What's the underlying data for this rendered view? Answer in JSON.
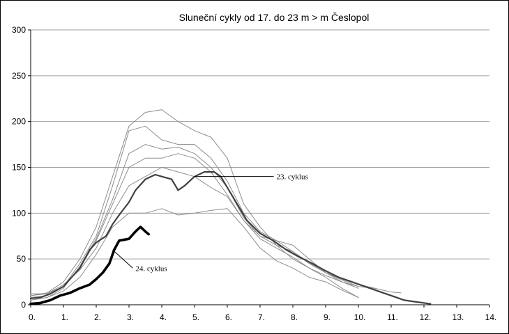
{
  "chart_data": {
    "type": "line",
    "title": "Sluneční cykly od 17. do 23 m > m  Česlopol",
    "xlabel": "",
    "ylabel": "",
    "xlim": [
      0,
      14
    ],
    "ylim": [
      0,
      300
    ],
    "x_ticks": [
      "0.",
      "1.",
      "2.",
      "3.",
      "4.",
      "5.",
      "6.",
      "7.",
      "8.",
      "9.",
      "10.",
      "11.",
      "12.",
      "13.",
      "14."
    ],
    "y_ticks": [
      "0",
      "50",
      "100",
      "150",
      "200",
      "250",
      "300"
    ],
    "grid": "horizontal",
    "annotations": [
      {
        "text": "23. cyklus",
        "points_to": [
          5.0,
          140
        ],
        "label_at": [
          7.5,
          137
        ]
      },
      {
        "text": "24. cyklus",
        "points_to": [
          2.5,
          60
        ],
        "label_at": [
          3.2,
          37
        ]
      }
    ],
    "series": [
      {
        "style": "thin",
        "points": [
          [
            0,
            10
          ],
          [
            0.5,
            13
          ],
          [
            1,
            25
          ],
          [
            1.5,
            50
          ],
          [
            2,
            85
          ],
          [
            2.5,
            140
          ],
          [
            3,
            195
          ],
          [
            3.5,
            210
          ],
          [
            4,
            213
          ],
          [
            4.5,
            200
          ],
          [
            5,
            190
          ],
          [
            5.5,
            183
          ],
          [
            6,
            160
          ],
          [
            6.5,
            110
          ],
          [
            7,
            85
          ],
          [
            7.5,
            65
          ],
          [
            8,
            50
          ],
          [
            8.5,
            40
          ],
          [
            9,
            30
          ],
          [
            9.5,
            18
          ],
          [
            10,
            8
          ]
        ]
      },
      {
        "style": "thin",
        "points": [
          [
            0,
            12
          ],
          [
            0.5,
            12
          ],
          [
            1,
            20
          ],
          [
            1.5,
            45
          ],
          [
            2,
            75
          ],
          [
            2.5,
            130
          ],
          [
            3,
            190
          ],
          [
            3.5,
            195
          ],
          [
            4,
            180
          ],
          [
            4.5,
            175
          ],
          [
            5,
            175
          ],
          [
            5.5,
            160
          ],
          [
            6,
            135
          ],
          [
            6.5,
            100
          ],
          [
            7,
            80
          ],
          [
            7.5,
            70
          ],
          [
            8,
            65
          ],
          [
            8.5,
            50
          ],
          [
            9,
            35
          ],
          [
            9.5,
            25
          ],
          [
            10,
            18
          ]
        ]
      },
      {
        "style": "thin",
        "points": [
          [
            0,
            5
          ],
          [
            0.5,
            8
          ],
          [
            1,
            18
          ],
          [
            1.5,
            42
          ],
          [
            2,
            72
          ],
          [
            2.5,
            115
          ],
          [
            3,
            165
          ],
          [
            3.5,
            175
          ],
          [
            4,
            170
          ],
          [
            4.5,
            172
          ],
          [
            5,
            165
          ],
          [
            5.5,
            150
          ],
          [
            6,
            128
          ],
          [
            6.5,
            95
          ],
          [
            7,
            75
          ],
          [
            7.5,
            65
          ],
          [
            8,
            58
          ],
          [
            8.5,
            45
          ],
          [
            9,
            35
          ],
          [
            9.5,
            28
          ],
          [
            10,
            22
          ],
          [
            10.5,
            18
          ],
          [
            11,
            14
          ],
          [
            11.3,
            13
          ]
        ]
      },
      {
        "style": "thin",
        "points": [
          [
            0,
            8
          ],
          [
            0.5,
            10
          ],
          [
            1,
            20
          ],
          [
            1.5,
            40
          ],
          [
            2,
            70
          ],
          [
            2.5,
            110
          ],
          [
            3,
            150
          ],
          [
            3.5,
            160
          ],
          [
            4,
            160
          ],
          [
            4.5,
            165
          ],
          [
            5,
            160
          ],
          [
            5.5,
            145
          ],
          [
            6,
            120
          ],
          [
            6.5,
            92
          ],
          [
            7,
            72
          ],
          [
            7.5,
            62
          ],
          [
            8,
            52
          ],
          [
            8.5,
            40
          ],
          [
            9,
            32
          ],
          [
            9.5,
            25
          ],
          [
            10,
            20
          ]
        ]
      },
      {
        "style": "thin",
        "points": [
          [
            0,
            10
          ],
          [
            0.5,
            12
          ],
          [
            1,
            22
          ],
          [
            1.5,
            38
          ],
          [
            2,
            62
          ],
          [
            2.5,
            100
          ],
          [
            3,
            130
          ],
          [
            3.5,
            140
          ],
          [
            4,
            150
          ],
          [
            4.5,
            145
          ],
          [
            5,
            140
          ],
          [
            5.5,
            128
          ],
          [
            6,
            118
          ],
          [
            6.5,
            92
          ],
          [
            7,
            75
          ],
          [
            7.5,
            70
          ],
          [
            8,
            58
          ],
          [
            8.5,
            46
          ],
          [
            9,
            35
          ],
          [
            9.5,
            27
          ],
          [
            10,
            20
          ],
          [
            10.5,
            18
          ]
        ]
      },
      {
        "style": "thin",
        "points": [
          [
            0,
            5
          ],
          [
            0.5,
            8
          ],
          [
            1,
            15
          ],
          [
            1.5,
            30
          ],
          [
            2,
            55
          ],
          [
            2.5,
            85
          ],
          [
            3,
            100
          ],
          [
            3.5,
            100
          ],
          [
            4,
            105
          ],
          [
            4.5,
            98
          ],
          [
            5,
            100
          ],
          [
            5.5,
            103
          ],
          [
            6,
            105
          ],
          [
            6.5,
            85
          ],
          [
            7,
            62
          ],
          [
            7.5,
            48
          ],
          [
            8,
            40
          ],
          [
            8.5,
            30
          ],
          [
            9,
            25
          ],
          [
            9.5,
            16
          ],
          [
            10,
            8
          ]
        ]
      },
      {
        "style": "medium",
        "points": [
          [
            0,
            7
          ],
          [
            0.3,
            8
          ],
          [
            0.6,
            12
          ],
          [
            1,
            20
          ],
          [
            1.5,
            40
          ],
          [
            1.8,
            60
          ],
          [
            2,
            68
          ],
          [
            2.3,
            75
          ],
          [
            2.5,
            88
          ],
          [
            2.7,
            98
          ],
          [
            3,
            112
          ],
          [
            3.2,
            125
          ],
          [
            3.5,
            137
          ],
          [
            3.8,
            142
          ],
          [
            4,
            140
          ],
          [
            4.3,
            137
          ],
          [
            4.5,
            125
          ],
          [
            4.7,
            130
          ],
          [
            5,
            140
          ],
          [
            5.3,
            145
          ],
          [
            5.6,
            145
          ],
          [
            5.8,
            140
          ],
          [
            6,
            128
          ],
          [
            6.3,
            110
          ],
          [
            6.6,
            92
          ],
          [
            7,
            78
          ],
          [
            7.4,
            70
          ],
          [
            7.8,
            60
          ],
          [
            8.2,
            52
          ],
          [
            8.6,
            45
          ],
          [
            9,
            37
          ],
          [
            9.4,
            30
          ],
          [
            9.8,
            25
          ],
          [
            10.2,
            20
          ],
          [
            10.6,
            15
          ],
          [
            11,
            10
          ],
          [
            11.4,
            5
          ],
          [
            11.8,
            3
          ],
          [
            12.2,
            1
          ]
        ]
      },
      {
        "style": "thick",
        "points": [
          [
            0,
            1
          ],
          [
            0.3,
            2
          ],
          [
            0.6,
            5
          ],
          [
            0.9,
            10
          ],
          [
            1.2,
            13
          ],
          [
            1.5,
            18
          ],
          [
            1.8,
            22
          ],
          [
            2,
            28
          ],
          [
            2.2,
            35
          ],
          [
            2.4,
            45
          ],
          [
            2.55,
            60
          ],
          [
            2.7,
            70
          ],
          [
            3,
            72
          ],
          [
            3.2,
            80
          ],
          [
            3.35,
            85
          ],
          [
            3.5,
            80
          ],
          [
            3.6,
            77
          ]
        ]
      }
    ]
  }
}
